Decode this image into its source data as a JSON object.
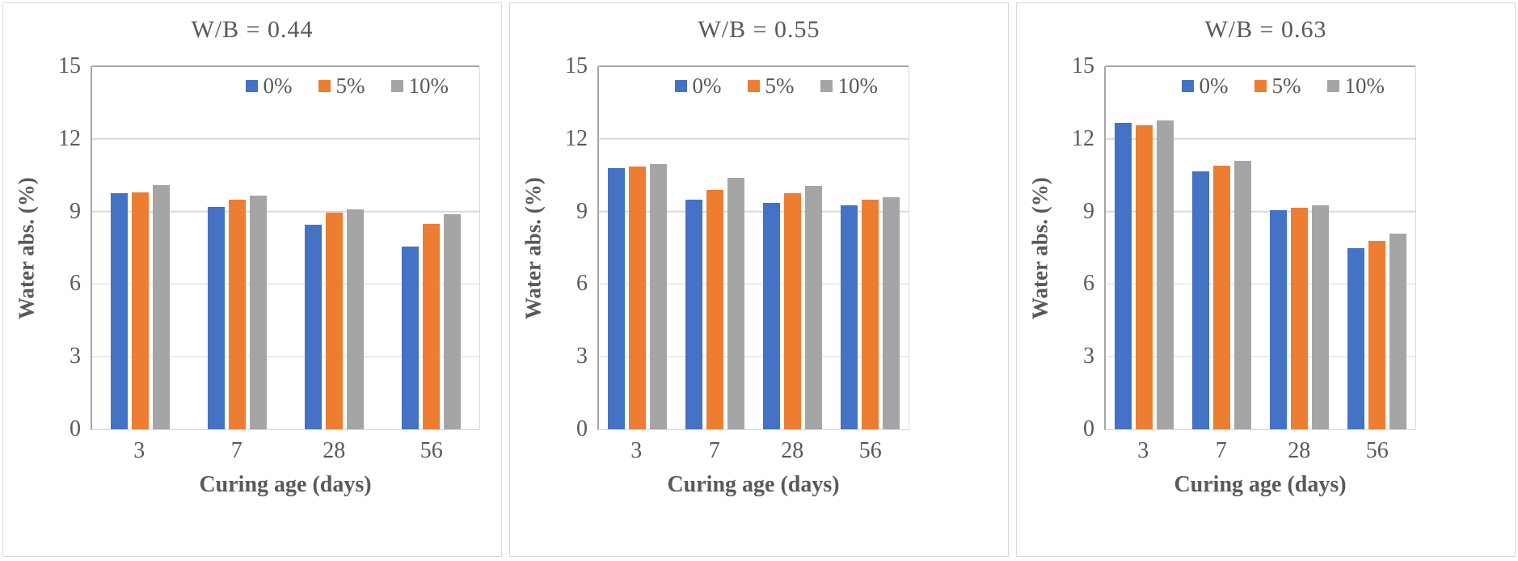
{
  "figure": {
    "text_color": "#595959",
    "gridline_color": "#d9d9d9",
    "axis_line_color": "#a6a6a6",
    "legend_labels": [
      "0%",
      "5%",
      "10%"
    ]
  },
  "chart_data": [
    {
      "type": "bar",
      "title": "W/B = 0.44",
      "xlabel": "Curing age (days)",
      "ylabel": "Water abs. (%)",
      "ylim": [
        0,
        15
      ],
      "yticks": [
        0,
        3,
        6,
        9,
        12,
        15
      ],
      "grid": "horizontal",
      "legend_position": "top-right-inside",
      "categories": [
        "3",
        "7",
        "28",
        "56"
      ],
      "series": [
        {
          "name": "0%",
          "color": "#4472C4",
          "values": [
            9.75,
            9.2,
            8.45,
            7.55
          ]
        },
        {
          "name": "5%",
          "color": "#ED7D31",
          "values": [
            9.8,
            9.5,
            8.95,
            8.5
          ]
        },
        {
          "name": "10%",
          "color": "#A5A5A5",
          "values": [
            10.1,
            9.65,
            9.1,
            8.9
          ]
        }
      ]
    },
    {
      "type": "bar",
      "title": "W/B = 0.55",
      "xlabel": "Curing age (days)",
      "ylabel": "Water abs. (%)",
      "ylim": [
        0,
        15
      ],
      "yticks": [
        0,
        3,
        6,
        9,
        12,
        15
      ],
      "grid": "horizontal",
      "legend_position": "top-right-inside",
      "categories": [
        "3",
        "7",
        "28",
        "56"
      ],
      "series": [
        {
          "name": "0%",
          "color": "#4472C4",
          "values": [
            10.8,
            9.5,
            9.35,
            9.25
          ]
        },
        {
          "name": "5%",
          "color": "#ED7D31",
          "values": [
            10.85,
            9.9,
            9.75,
            9.5
          ]
        },
        {
          "name": "10%",
          "color": "#A5A5A5",
          "values": [
            10.95,
            10.4,
            10.05,
            9.6
          ]
        }
      ]
    },
    {
      "type": "bar",
      "title": "W/B = 0.63",
      "xlabel": "Curing age (days)",
      "ylabel": "Water abs. (%)",
      "ylim": [
        0,
        15
      ],
      "yticks": [
        0,
        3,
        6,
        9,
        12,
        15
      ],
      "grid": "horizontal",
      "legend_position": "top-right-inside",
      "categories": [
        "3",
        "7",
        "28",
        "56"
      ],
      "series": [
        {
          "name": "0%",
          "color": "#4472C4",
          "values": [
            12.65,
            10.65,
            9.05,
            7.5
          ]
        },
        {
          "name": "5%",
          "color": "#ED7D31",
          "values": [
            12.55,
            10.9,
            9.15,
            7.8
          ]
        },
        {
          "name": "10%",
          "color": "#A5A5A5",
          "values": [
            12.75,
            11.1,
            9.25,
            8.1
          ]
        }
      ]
    }
  ]
}
